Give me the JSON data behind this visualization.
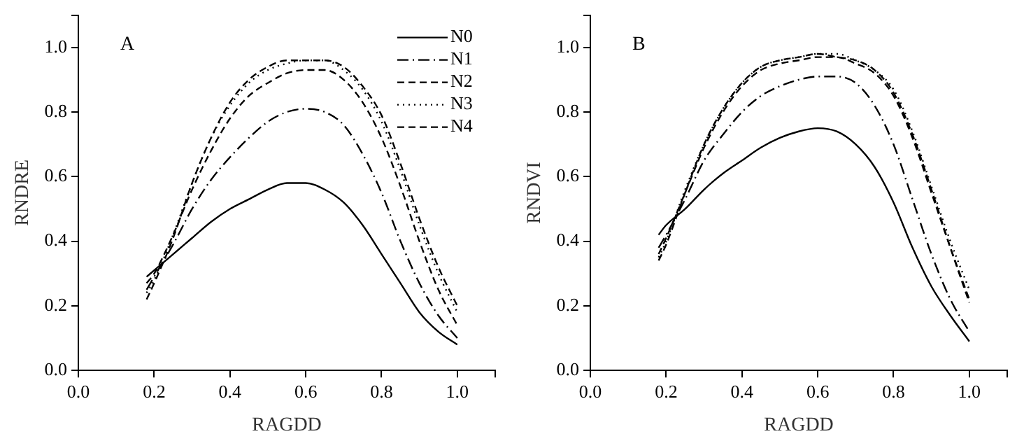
{
  "chart_data": [
    {
      "type": "line",
      "xlabel": "RAGDD",
      "ylabel": "RNDRE",
      "annotations": [
        "A"
      ],
      "legend": "top right",
      "xlim": [
        0,
        1.1
      ],
      "ylim": [
        0,
        1.1
      ],
      "xticks": [
        {
          "value": 0,
          "label": "0.0"
        },
        0.2,
        0.4,
        0.6,
        0.8,
        {
          "value": 1,
          "label": "1.0"
        },
        {
          "value": 1.1,
          "label": null
        }
      ],
      "yticks": [
        {
          "value": 0,
          "label": "0.0"
        },
        0.2,
        0.4,
        0.6,
        0.8,
        {
          "value": 1,
          "label": "1.0"
        },
        {
          "value": 1.1,
          "label": null
        }
      ],
      "grid": false,
      "marker": "none",
      "x": [
        0.18,
        0.2,
        0.25,
        0.3,
        0.35,
        0.4,
        0.45,
        0.5,
        0.55,
        0.6,
        0.65,
        0.7,
        0.75,
        0.8,
        0.85,
        0.9,
        0.95,
        1.0
      ],
      "series": [
        {
          "name": "N0",
          "color": "#000000",
          "line_style": "solid",
          "values": [
            0.29,
            0.31,
            0.36,
            0.41,
            0.46,
            0.5,
            0.53,
            0.56,
            0.58,
            0.58,
            0.56,
            0.52,
            0.45,
            0.36,
            0.27,
            0.18,
            0.12,
            0.08
          ]
        },
        {
          "name": "N1",
          "color": "#000000",
          "line_style": "dashdot",
          "values": [
            0.25,
            0.29,
            0.39,
            0.5,
            0.59,
            0.66,
            0.72,
            0.77,
            0.8,
            0.81,
            0.8,
            0.76,
            0.67,
            0.55,
            0.4,
            0.27,
            0.17,
            0.1
          ]
        },
        {
          "name": "N2",
          "color": "#000000",
          "line_style": "dashed",
          "values": [
            0.27,
            0.3,
            0.42,
            0.56,
            0.68,
            0.78,
            0.85,
            0.89,
            0.92,
            0.93,
            0.93,
            0.9,
            0.83,
            0.72,
            0.57,
            0.4,
            0.25,
            0.14
          ]
        },
        {
          "name": "N3",
          "color": "#000000",
          "line_style": "dotted",
          "values": [
            0.24,
            0.28,
            0.42,
            0.58,
            0.72,
            0.82,
            0.89,
            0.93,
            0.95,
            0.96,
            0.96,
            0.93,
            0.87,
            0.77,
            0.62,
            0.45,
            0.3,
            0.18
          ]
        },
        {
          "name": "N4",
          "color": "#000000",
          "line_style": "dashed",
          "values": [
            0.22,
            0.27,
            0.41,
            0.58,
            0.72,
            0.83,
            0.9,
            0.94,
            0.96,
            0.96,
            0.96,
            0.94,
            0.88,
            0.79,
            0.64,
            0.47,
            0.32,
            0.2
          ]
        }
      ]
    },
    {
      "type": "line",
      "xlabel": "RAGDD",
      "ylabel": "RNDVI",
      "annotations": [
        "B"
      ],
      "xlim": [
        0,
        1.1
      ],
      "ylim": [
        0,
        1.1
      ],
      "xticks": [
        {
          "value": 0,
          "label": "0.0"
        },
        0.2,
        0.4,
        0.6,
        0.8,
        {
          "value": 1,
          "label": "1.0"
        },
        {
          "value": 1.1,
          "label": null
        }
      ],
      "yticks": [
        {
          "value": 0,
          "label": "0.0"
        },
        0.2,
        0.4,
        0.6,
        0.8,
        {
          "value": 1,
          "label": "1.0"
        },
        {
          "value": 1.1,
          "label": null
        }
      ],
      "grid": false,
      "marker": "none",
      "x": [
        0.18,
        0.2,
        0.25,
        0.3,
        0.35,
        0.4,
        0.45,
        0.5,
        0.55,
        0.6,
        0.65,
        0.7,
        0.75,
        0.8,
        0.85,
        0.9,
        0.95,
        1.0
      ],
      "series": [
        {
          "color": "#000000",
          "line_style": "solid",
          "values": [
            0.42,
            0.45,
            0.5,
            0.56,
            0.61,
            0.65,
            0.69,
            0.72,
            0.74,
            0.75,
            0.74,
            0.7,
            0.63,
            0.52,
            0.38,
            0.26,
            0.17,
            0.09
          ]
        },
        {
          "color": "#000000",
          "line_style": "dashdot",
          "values": [
            0.38,
            0.42,
            0.53,
            0.65,
            0.73,
            0.8,
            0.85,
            0.88,
            0.9,
            0.91,
            0.91,
            0.89,
            0.82,
            0.7,
            0.53,
            0.36,
            0.22,
            0.12
          ]
        },
        {
          "color": "#000000",
          "line_style": "dashed",
          "values": [
            0.36,
            0.41,
            0.55,
            0.69,
            0.8,
            0.88,
            0.93,
            0.95,
            0.96,
            0.97,
            0.97,
            0.95,
            0.92,
            0.85,
            0.72,
            0.55,
            0.38,
            0.22
          ]
        },
        {
          "color": "#000000",
          "line_style": "dotted",
          "values": [
            0.35,
            0.4,
            0.56,
            0.7,
            0.81,
            0.89,
            0.94,
            0.96,
            0.97,
            0.98,
            0.98,
            0.96,
            0.93,
            0.87,
            0.74,
            0.57,
            0.4,
            0.25
          ]
        },
        {
          "color": "#000000",
          "line_style": "dashed",
          "values": [
            0.34,
            0.39,
            0.55,
            0.7,
            0.81,
            0.89,
            0.94,
            0.96,
            0.97,
            0.98,
            0.97,
            0.96,
            0.93,
            0.86,
            0.73,
            0.56,
            0.38,
            0.21
          ]
        }
      ]
    }
  ]
}
